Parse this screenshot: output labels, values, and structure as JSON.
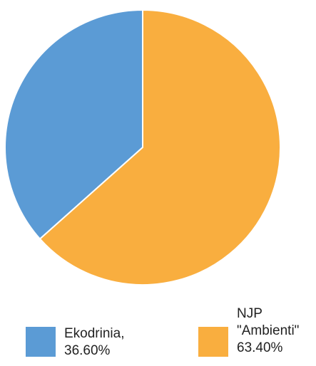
{
  "chart_data": {
    "type": "pie",
    "slices": [
      {
        "label_lines": [
          "Ekodrinia,",
          "36.60%"
        ],
        "value": 36.6,
        "color": "#5b9bd5"
      },
      {
        "label_lines": [
          "NJP",
          "\"Ambienti\"",
          "63.40%"
        ],
        "value": 63.4,
        "color": "#f9ae3f"
      }
    ],
    "start_angle_deg": 0,
    "direction": "counterclockwise",
    "legend_position": "bottom"
  }
}
